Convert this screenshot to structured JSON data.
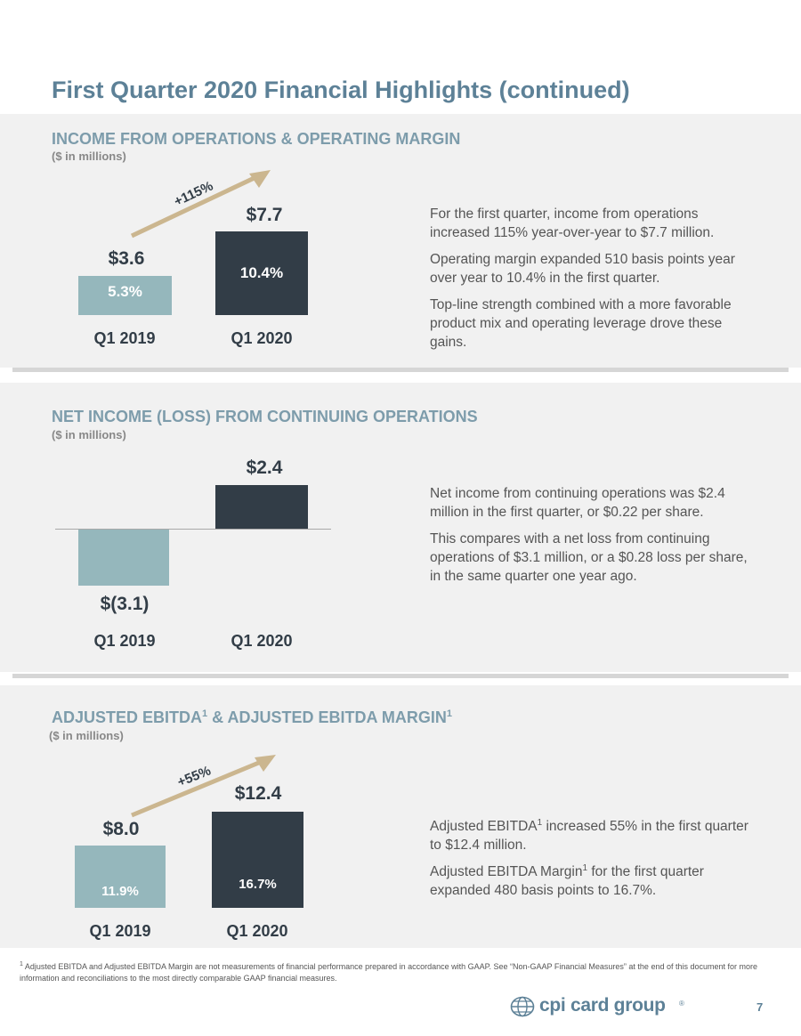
{
  "title": "First Quarter 2020 Financial Highlights (continued)",
  "sections": [
    {
      "heading": "INCOME FROM OPERATIONS & OPERATING MARGIN",
      "unit": "($ in millions)",
      "growth_label": "+115%",
      "paragraphs": [
        "For the first quarter, income from operations increased 115% year-over-year to $7.7 million.",
        "Operating margin expanded 510 basis points year over year to 10.4% in the first quarter.",
        "Top-line strength combined with a more favorable product mix and operating leverage drove these gains."
      ]
    },
    {
      "heading": "NET INCOME (LOSS) FROM CONTINUING OPERATIONS",
      "unit": "($ in millions)",
      "paragraphs": [
        "Net income from continuing operations was $2.4 million in the first quarter, or $0.22 per share.",
        "This compares with a net loss from continuing operations of $3.1 million, or a $0.28 loss per share, in the same quarter one year ago."
      ]
    },
    {
      "heading_part1": "ADJUSTED EBITDA",
      "heading_sup1": "1",
      "heading_part2": " & ADJUSTED EBITDA MARGIN",
      "heading_sup2": "1",
      "unit": "($ in millions)",
      "growth_label": "+55%",
      "p1_part1": "Adjusted EBITDA",
      "p1_sup": "1",
      "p1_part2": " increased 55% in the first quarter to $12.4 million.",
      "p2_part1": "Adjusted EBITDA Margin",
      "p2_sup": "1",
      "p2_part2": " for the first quarter expanded 480 basis points to 16.7%."
    }
  ],
  "chart_data": [
    {
      "type": "bar",
      "categories": [
        "Q1 2019",
        "Q1 2020"
      ],
      "values": [
        3.6,
        7.7
      ],
      "value_labels": [
        "$3.6",
        "$7.7"
      ],
      "margin_labels": [
        "5.3%",
        "10.4%"
      ],
      "colors": [
        "#95b7bc",
        "#323d47"
      ]
    },
    {
      "type": "bar",
      "categories": [
        "Q1 2019",
        "Q1 2020"
      ],
      "values": [
        -3.1,
        2.4
      ],
      "value_labels": [
        "$(3.1)",
        "$2.4"
      ],
      "colors": [
        "#95b7bc",
        "#323d47"
      ]
    },
    {
      "type": "bar",
      "categories": [
        "Q1 2019",
        "Q1 2020"
      ],
      "values": [
        8.0,
        12.4
      ],
      "value_labels": [
        "$8.0",
        "$12.4"
      ],
      "margin_labels": [
        "11.9%",
        "16.7%"
      ],
      "colors": [
        "#95b7bc",
        "#323d47"
      ]
    }
  ],
  "footnote": {
    "sup": "1",
    "text": " Adjusted EBITDA and Adjusted EBITDA Margin are not measurements of financial performance prepared in accordance with GAAP. See “Non-GAAP Financial Measures” at the end of this document for more information and reconciliations to the most directly comparable GAAP financial measures."
  },
  "logo": {
    "text": "cpi card group",
    "mark": "®"
  },
  "page_number": "7"
}
